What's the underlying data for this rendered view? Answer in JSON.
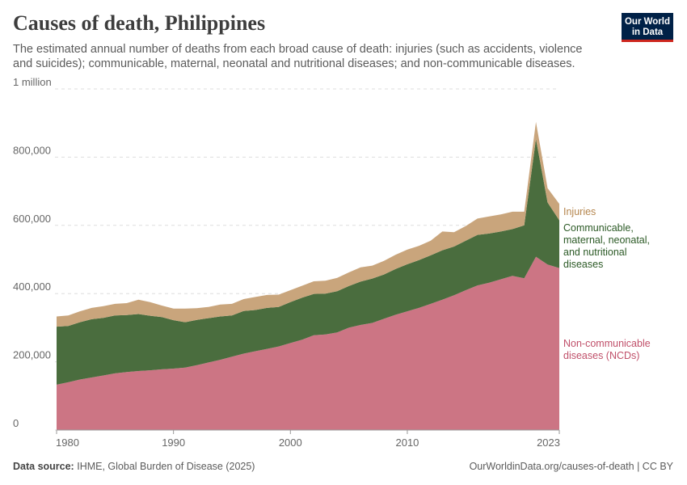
{
  "header": {
    "title": "Causes of death, Philippines",
    "subtitle": "The estimated annual number of deaths from each broad cause of death: injuries (such as accidents, violence and suicides); communicable, maternal, neonatal and nutritional diseases; and non-communicable diseases.",
    "logo_line1": "Our World",
    "logo_line2": "in Data"
  },
  "footer": {
    "source_label": "Data source:",
    "source_text": "IHME, Global Burden of Disease (2025)",
    "url": "OurWorldinData.org/causes-of-death | CC BY"
  },
  "colors": {
    "ncd": "#cc7584",
    "communicable": "#4a6d3e",
    "injuries": "#c9a57c",
    "ncd_label": "#c0506a",
    "communicable_label": "#2c5a26",
    "injuries_label": "#b5864e"
  },
  "chart_data": {
    "type": "area",
    "stacked": true,
    "title": "Causes of death, Philippines",
    "xlabel": "",
    "ylabel": "",
    "xlim": [
      1980,
      2023
    ],
    "ylim": [
      0,
      1000000
    ],
    "y_ticks": [
      0,
      200000,
      400000,
      600000,
      800000,
      1000000
    ],
    "y_tick_labels": [
      "0",
      "200,000",
      "400,000",
      "600,000",
      "800,000",
      "1 million"
    ],
    "x_ticks": [
      1980,
      1990,
      2000,
      2010,
      2023
    ],
    "x_tick_labels": [
      "1980",
      "1990",
      "2000",
      "2010",
      "2023"
    ],
    "x": [
      1980,
      1981,
      1982,
      1983,
      1984,
      1985,
      1986,
      1987,
      1988,
      1989,
      1990,
      1991,
      1992,
      1993,
      1994,
      1995,
      1996,
      1997,
      1998,
      1999,
      2000,
      2001,
      2002,
      2003,
      2004,
      2005,
      2006,
      2007,
      2008,
      2009,
      2010,
      2011,
      2012,
      2013,
      2014,
      2015,
      2016,
      2017,
      2018,
      2019,
      2020,
      2021,
      2022,
      2023
    ],
    "series": [
      {
        "name": "Non-communicable diseases (NCDs)",
        "label_lines": [
          "Non-communicable",
          "diseases (NCDs)"
        ],
        "values": [
          133000,
          140000,
          148000,
          154000,
          160000,
          166000,
          170000,
          173000,
          175000,
          178000,
          180000,
          183000,
          190000,
          198000,
          206000,
          215000,
          224000,
          231000,
          238000,
          245000,
          255000,
          265000,
          278000,
          280000,
          286000,
          300000,
          308000,
          314000,
          326000,
          338000,
          348000,
          358000,
          370000,
          382000,
          395000,
          410000,
          424000,
          432000,
          442000,
          452000,
          445000,
          508000,
          485000,
          475000
        ]
      },
      {
        "name": "Communicable, maternal, neonatal, and nutritional diseases",
        "label_lines": [
          "Communicable,",
          "maternal, neonatal,",
          "and nutritional",
          "diseases"
        ],
        "values": [
          170000,
          165000,
          168000,
          171000,
          169000,
          170000,
          167000,
          167000,
          160000,
          153000,
          142000,
          133000,
          133000,
          130000,
          127000,
          121000,
          125000,
          121000,
          120000,
          116000,
          120000,
          123000,
          121000,
          120000,
          121000,
          122000,
          127000,
          130000,
          130000,
          134000,
          138000,
          140000,
          142000,
          145000,
          143000,
          145000,
          148000,
          144000,
          140000,
          137000,
          155000,
          345000,
          182000,
          140000
        ]
      },
      {
        "name": "Injuries",
        "label_lines": [
          "Injuries"
        ],
        "values": [
          30000,
          31000,
          32000,
          33000,
          34000,
          34000,
          35000,
          42000,
          40000,
          34000,
          34000,
          40000,
          34000,
          33000,
          35000,
          34000,
          35000,
          38000,
          38000,
          36000,
          35000,
          35000,
          37000,
          38000,
          39000,
          40000,
          42000,
          38000,
          40000,
          42000,
          43000,
          42000,
          43000,
          55000,
          42000,
          43000,
          48000,
          50000,
          50000,
          51000,
          40000,
          50000,
          42000,
          48000
        ]
      }
    ]
  }
}
